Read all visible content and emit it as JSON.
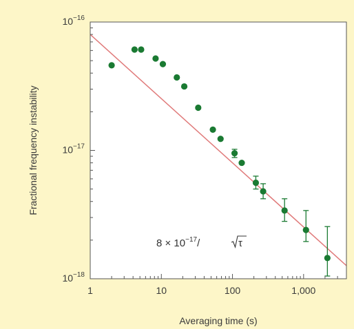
{
  "chart_data": {
    "type": "scatter",
    "title": "",
    "xlabel": "Averaging time (s)",
    "ylabel": "Fractional frequency instability",
    "xscale": "log",
    "yscale": "log",
    "xlim": [
      1,
      4000
    ],
    "ylim": [
      1e-18,
      1e-16
    ],
    "x_ticks": [
      {
        "value": 1,
        "label": "1"
      },
      {
        "value": 10,
        "label": "10"
      },
      {
        "value": 100,
        "label": "100"
      },
      {
        "value": 1000,
        "label": "1,000"
      }
    ],
    "y_ticks": [
      {
        "value": 1e-18,
        "base": "10",
        "exp": "−18"
      },
      {
        "value": 1e-17,
        "base": "10",
        "exp": "−17"
      },
      {
        "value": 1e-16,
        "base": "10",
        "exp": "−16"
      }
    ],
    "grid": false,
    "series": [
      {
        "color": "#1a7a32",
        "points": [
          {
            "x": 2,
            "y": 4.6e-17
          },
          {
            "x": 4.2,
            "y": 6.1e-17
          },
          {
            "x": 5.2,
            "y": 6.1e-17
          },
          {
            "x": 8.3,
            "y": 5.2e-17
          },
          {
            "x": 10.5,
            "y": 4.7e-17
          },
          {
            "x": 16.5,
            "y": 3.7e-17
          },
          {
            "x": 21,
            "y": 3.15e-17
          },
          {
            "x": 33,
            "y": 2.15e-17
          },
          {
            "x": 53,
            "y": 1.45e-17
          },
          {
            "x": 68,
            "y": 1.23e-17
          },
          {
            "x": 107,
            "y": 9.5e-18,
            "err": [
              8.8e-18,
              1.02e-17
            ]
          },
          {
            "x": 135,
            "y": 8e-18
          },
          {
            "x": 213,
            "y": 5.6e-18,
            "err": [
              5e-18,
              6.3e-18
            ]
          },
          {
            "x": 270,
            "y": 4.8e-18,
            "err": [
              4.2e-18,
              5.5e-18
            ]
          },
          {
            "x": 540,
            "y": 3.4e-18,
            "err": [
              2.8e-18,
              4.2e-18
            ]
          },
          {
            "x": 1080,
            "y": 2.4e-18,
            "err": [
              1.95e-18,
              3.4e-18
            ]
          },
          {
            "x": 2160,
            "y": 1.45e-18,
            "err": [
              1.05e-18,
              2.55e-18
            ]
          }
        ]
      }
    ],
    "fit_line": {
      "color": "#e07a7a",
      "coefficient": 8e-17,
      "exponent": -0.5,
      "label_prefix": "8 × 10",
      "label_exp": "−17",
      "label_slash": "/",
      "label_tau": "τ"
    }
  }
}
